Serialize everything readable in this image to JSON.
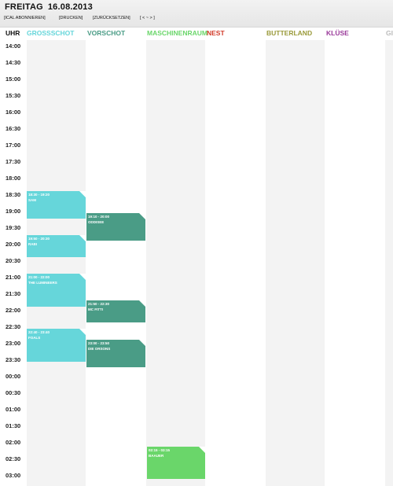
{
  "header": {
    "day": "FREITAG",
    "date": "16.08.2013",
    "actions": [
      "[ICAL ABONNIEREN]",
      "[DRUCKEN]",
      "[ZURÜCKSETZEN]",
      "[ < ~ > ]"
    ]
  },
  "columns": {
    "time_label": "UHR",
    "stages": [
      {
        "name": "GROSSSCHOT",
        "color": "#66d6da"
      },
      {
        "name": "VORSCHOT",
        "color": "#4a9c86"
      },
      {
        "name": "MASCHINENRAUM",
        "color": "#6ad66a"
      },
      {
        "name": "NEST",
        "color": "#d23b2a"
      },
      {
        "name": "BUTTERLAND",
        "color": "#9a9a3a"
      },
      {
        "name": "KLÜSE",
        "color": "#9a3a9a"
      },
      {
        "name": "GI",
        "color": "#bbbbbb"
      }
    ]
  },
  "times": [
    "14:00",
    "14:30",
    "15:00",
    "15:30",
    "16:00",
    "16:30",
    "17:00",
    "17:30",
    "18:00",
    "18:30",
    "19:00",
    "19:30",
    "20:00",
    "20:30",
    "21:00",
    "21:30",
    "22:00",
    "22:30",
    "23:00",
    "23:30",
    "00:00",
    "00:30",
    "01:00",
    "01:30",
    "02:00",
    "02:30",
    "03:00"
  ],
  "events": [
    {
      "time": "18:30 - 19:20",
      "name": "SAM"
    },
    {
      "time": "19:50 - 20:30",
      "name": "RABI"
    },
    {
      "time": "21:00 - 22:00",
      "name": "THE LUMINEERS"
    },
    {
      "time": "22:40 - 23:40",
      "name": "FOALS"
    },
    {
      "time": "19:10 - 20:00",
      "name": "ODDISEE"
    },
    {
      "time": "21:50 - 22:30",
      "name": "MC FITTI"
    },
    {
      "time": "23:00 - 23:50",
      "name": "DIE ORSONS"
    },
    {
      "time": "02:15 - 03:15",
      "name": "BAAUER"
    }
  ]
}
